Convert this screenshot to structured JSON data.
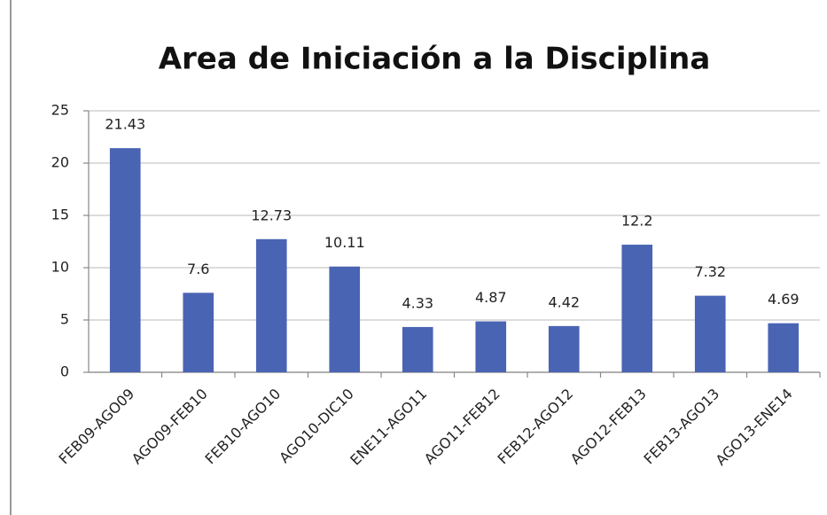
{
  "chart_data": {
    "type": "bar",
    "title": "Area de Iniciación a la Disciplina",
    "categories": [
      "FEB09-AGO09",
      "AGO09-FEB10",
      "FEB10-AGO10",
      "AGO10-DIC10",
      "ENE11-AGO11",
      "AGO11-FEB12",
      "FEB12-AGO12",
      "AGO12-FEB13",
      "FEB13-AGO13",
      "AGO13-ENE14"
    ],
    "values": [
      21.43,
      7.6,
      12.73,
      10.11,
      4.33,
      4.87,
      4.42,
      12.2,
      7.32,
      4.69
    ],
    "color": "#4a64b4",
    "ylim": [
      0,
      25
    ],
    "yticks": [
      0,
      5,
      10,
      15,
      20,
      25
    ],
    "grid": true
  }
}
